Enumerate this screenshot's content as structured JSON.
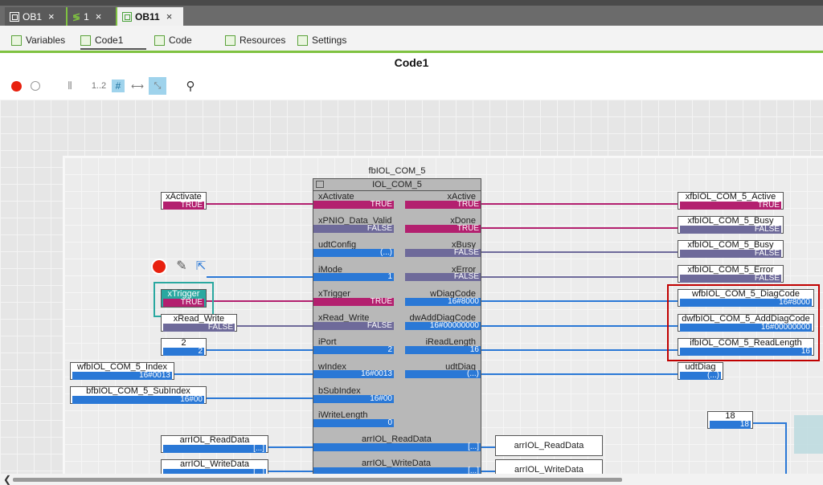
{
  "tabs": [
    {
      "label": "OB1",
      "close": "×"
    },
    {
      "label": "1",
      "close": "×"
    },
    {
      "label": "OB11",
      "close": "×"
    }
  ],
  "subtabs": [
    {
      "label": "Variables"
    },
    {
      "label": "Code1"
    },
    {
      "label": "Code"
    },
    {
      "label": "Resources"
    },
    {
      "label": "Settings"
    }
  ],
  "page_title": "Code1",
  "toolbar": {
    "zoom_label": "1..2"
  },
  "block": {
    "instance_name": "fbIOL_COM_5",
    "type_name": "IOL_COM_5",
    "inputs": [
      {
        "name": "xActivate",
        "value": "TRUE"
      },
      {
        "name": "xPNIO_Data_Valid",
        "value": "FALSE"
      },
      {
        "name": "udtConfig",
        "value": "(...)"
      },
      {
        "name": "iMode",
        "value": "1"
      },
      {
        "name": "xTrigger",
        "value": "TRUE"
      },
      {
        "name": "xRead_Write",
        "value": "FALSE"
      },
      {
        "name": "iPort",
        "value": "2"
      },
      {
        "name": "wIndex",
        "value": "16#0013"
      },
      {
        "name": "bSubIndex",
        "value": "16#00"
      },
      {
        "name": "iWriteLength",
        "value": "0"
      },
      {
        "name": "arrIOL_ReadData",
        "value": "[...]"
      },
      {
        "name": "arrIOL_WriteData",
        "value": "[...]"
      }
    ],
    "outputs": [
      {
        "name": "xActive",
        "value": "TRUE"
      },
      {
        "name": "xDone",
        "value": "TRUE"
      },
      {
        "name": "xBusy",
        "value": "FALSE"
      },
      {
        "name": "xError",
        "value": "FALSE"
      },
      {
        "name": "wDiagCode",
        "value": "16#8000"
      },
      {
        "name": "dwAddDiagCode",
        "value": "16#00000000"
      },
      {
        "name": "iReadLength",
        "value": "16"
      },
      {
        "name": "udtDiag",
        "value": "(...)"
      }
    ]
  },
  "left_vars": [
    {
      "name": "xActivate",
      "value": "TRUE"
    },
    {
      "name": "xTrigger",
      "value": "TRUE"
    },
    {
      "name": "xRead_Write",
      "value": "FALSE"
    },
    {
      "name": "2",
      "value": "2"
    },
    {
      "name": "wfbIOL_COM_5_Index",
      "value": "16#0013"
    },
    {
      "name": "bfbIOL_COM_5_SubIndex",
      "value": "16#00"
    },
    {
      "name": "arrIOL_ReadData",
      "value": "[...]"
    },
    {
      "name": "arrIOL_WriteData",
      "value": "[...]"
    }
  ],
  "right_vars": [
    {
      "name": "xfbIOL_COM_5_Active",
      "value": "TRUE"
    },
    {
      "name": "xfbIOL_COM_5_Busy",
      "value": "FALSE"
    },
    {
      "name": "xfbIOL_COM_5_Busy",
      "value": "FALSE"
    },
    {
      "name": "xfbIOL_COM_5_Error",
      "value": "FALSE"
    },
    {
      "name": "wfbIOL_COM_5_DiagCode",
      "value": "16#8000"
    },
    {
      "name": "dwfbIOL_COM_5_AddDiagCode",
      "value": "16#00000000"
    },
    {
      "name": "ifbIOL_COM_5_ReadLength",
      "value": "16"
    },
    {
      "name": "udtDiag",
      "value": "(...)"
    }
  ],
  "out_arr": [
    {
      "name": "arrIOL_ReadData"
    },
    {
      "name": "arrIOL_WriteData"
    }
  ],
  "const18": {
    "name": "18",
    "value": "18"
  },
  "colors": {
    "bool_true": "#b3206f",
    "bool_false": "#6e6a9a",
    "numeric": "#2a78d6",
    "highlight": "#c00000"
  }
}
